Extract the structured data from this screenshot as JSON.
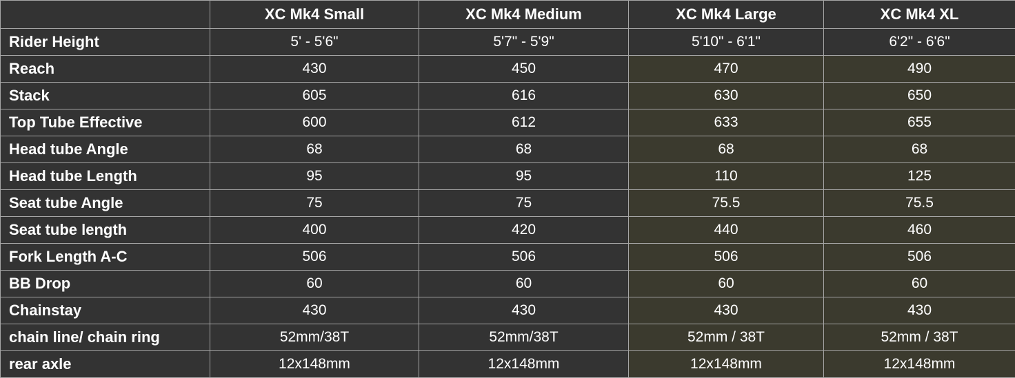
{
  "colors": {
    "cell_background": "#333333",
    "highlight_background": "#3b3a2e",
    "border": "#a6a6a6",
    "text": "#ffffff"
  },
  "columns": [
    "",
    "XC Mk4 Small",
    "XC Mk4 Medium",
    "XC Mk4 Large",
    "XC Mk4 XL"
  ],
  "rows": [
    {
      "label": "Rider Height",
      "values": [
        "5' - 5'6\"",
        "5'7\" - 5'9\"",
        "5'10\" - 6'1\"",
        "6'2\" - 6'6\""
      ]
    },
    {
      "label": "Reach",
      "values": [
        "430",
        "450",
        "470",
        "490"
      ]
    },
    {
      "label": "Stack",
      "values": [
        "605",
        "616",
        "630",
        "650"
      ]
    },
    {
      "label": "Top Tube Effective",
      "values": [
        "600",
        "612",
        "633",
        "655"
      ]
    },
    {
      "label": "Head tube Angle",
      "values": [
        "68",
        "68",
        "68",
        "68"
      ]
    },
    {
      "label": "Head tube Length",
      "values": [
        "95",
        "95",
        "110",
        "125"
      ]
    },
    {
      "label": "Seat tube Angle",
      "values": [
        "75",
        "75",
        "75.5",
        "75.5"
      ]
    },
    {
      "label": "Seat tube length",
      "values": [
        "400",
        "420",
        "440",
        "460"
      ]
    },
    {
      "label": "Fork Length A-C",
      "values": [
        "506",
        "506",
        "506",
        "506"
      ]
    },
    {
      "label": "BB Drop",
      "values": [
        "60",
        "60",
        "60",
        "60"
      ]
    },
    {
      "label": "Chainstay",
      "values": [
        "430",
        "430",
        "430",
        "430"
      ]
    },
    {
      "label": "chain line/ chain ring",
      "values": [
        "52mm/38T",
        "52mm/38T",
        "52mm / 38T",
        "52mm / 38T"
      ]
    },
    {
      "label": "rear axle",
      "values": [
        "12x148mm",
        "12x148mm",
        "12x148mm",
        "12x148mm"
      ]
    }
  ]
}
